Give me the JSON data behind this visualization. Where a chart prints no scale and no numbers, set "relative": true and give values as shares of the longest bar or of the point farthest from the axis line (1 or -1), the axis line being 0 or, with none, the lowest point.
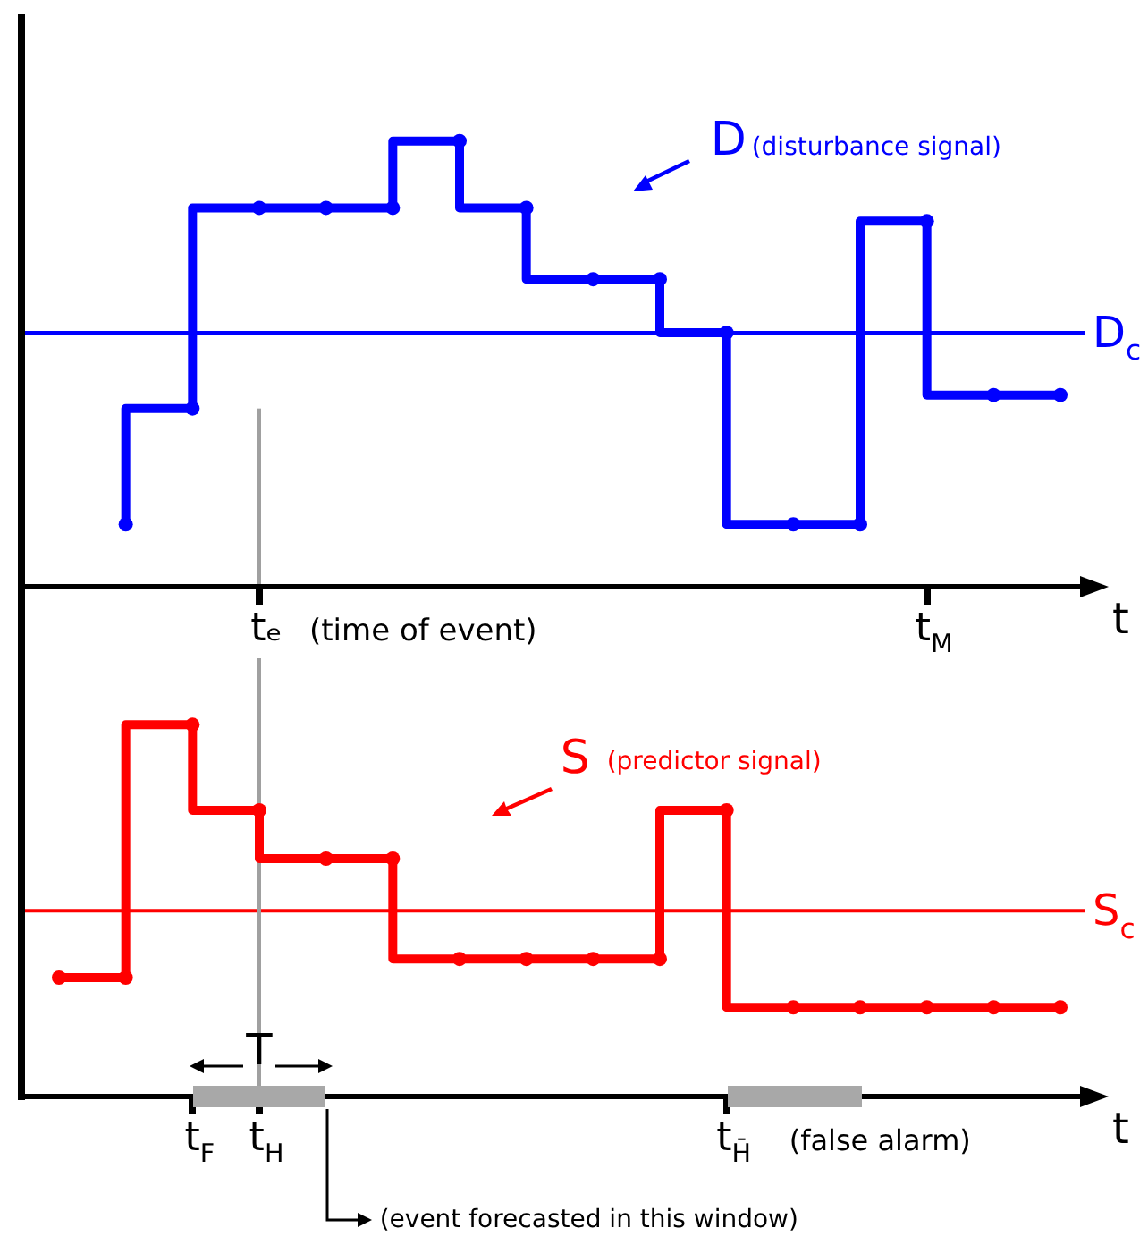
{
  "chart_data": [
    {
      "type": "step",
      "relative": true,
      "xlabel": "t",
      "legend": false,
      "marker": "circle",
      "categories": [
        null,
        null,
        null,
        "tₑ",
        null,
        null,
        null,
        null,
        null,
        null,
        null,
        null,
        null,
        "t$_{M}$",
        null,
        null
      ],
      "series": [
        {
          "name": "D",
          "color": "#0000ff",
          "values": [
            null,
            0.14,
            0.4,
            0.85,
            0.85,
            0.85,
            1,
            0.85,
            0.69,
            0.69,
            0.57,
            0.14,
            0.14,
            0.82,
            0.43,
            0.43
          ]
        }
      ],
      "ref_lines": [
        {
          "axis": "y",
          "value": 0.57,
          "label": "D$_{c}$",
          "color": "#0000ff"
        },
        {
          "axis": "x",
          "value": "tₑ",
          "color": "#a0a0a0"
        }
      ],
      "annotations": [
        "(disturbance signal)",
        "(time of event)"
      ]
    },
    {
      "type": "step",
      "relative": true,
      "xlabel": "t",
      "legend": false,
      "marker": "circle",
      "categories": [
        null,
        null,
        "t$_{F}$",
        "t$_{H}$",
        null,
        null,
        null,
        null,
        null,
        null,
        "t$_{H̄}$",
        null,
        null,
        null,
        null,
        null
      ],
      "series": [
        {
          "name": "S",
          "color": "#ff0000",
          "values": [
            0.32,
            0.32,
            1,
            0.77,
            0.64,
            0.64,
            0.37,
            0.37,
            0.37,
            0.37,
            0.77,
            0.24,
            0.24,
            0.24,
            0.24,
            0.24
          ]
        }
      ],
      "ref_lines": [
        {
          "axis": "y",
          "value": 0.5,
          "label": "S$_{c}$",
          "color": "#ff0000"
        },
        {
          "axis": "x",
          "value": "t$_{H}$",
          "color": "#a0a0a0"
        }
      ],
      "annotations": [
        "(predictor signal)",
        "T",
        "(false alarm)",
        "(event forecasted in this window)"
      ]
    }
  ]
}
